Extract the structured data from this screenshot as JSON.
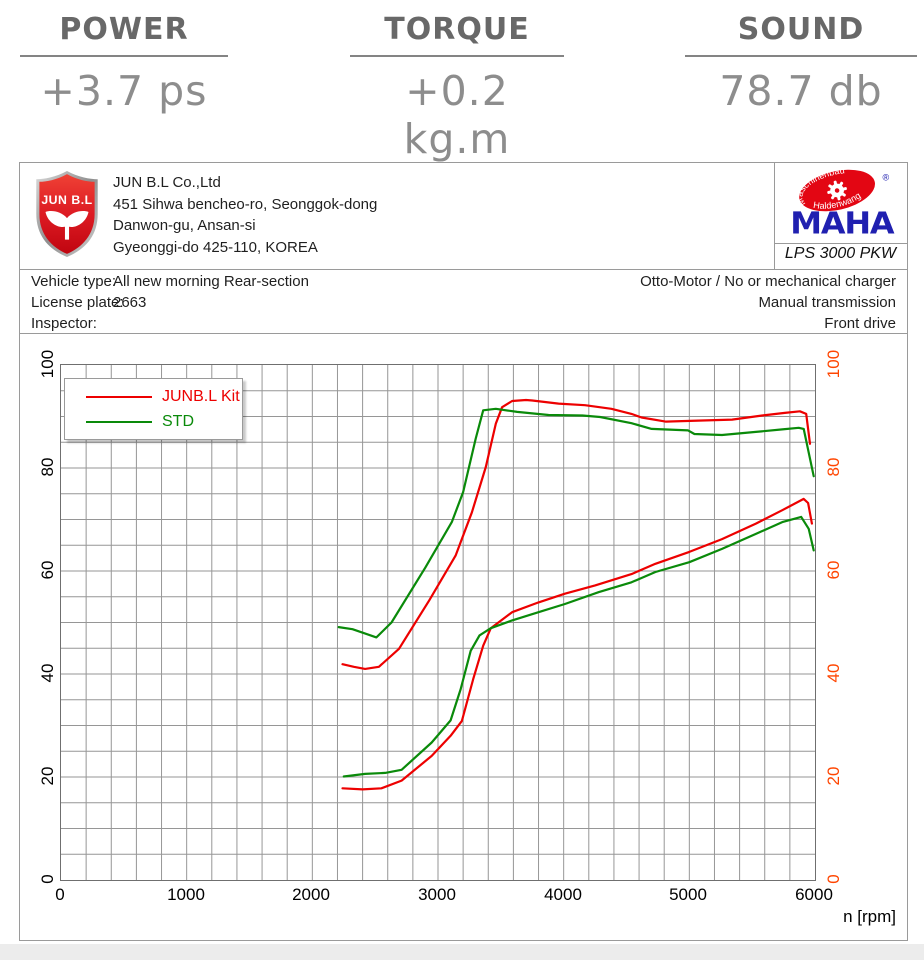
{
  "metrics": [
    {
      "label": "POWER",
      "value": "+3.7 ps"
    },
    {
      "label": "TORQUE",
      "value": "+0.2 kg.m"
    },
    {
      "label": "SOUND",
      "value": "78.7 db"
    }
  ],
  "company": {
    "logo_text": "JUN B.L",
    "name": "JUN B.L Co.,Ltd",
    "address_lines": [
      "451 Sihwa bencheo-ro, Seonggok-dong",
      "Danwon-gu, Ansan-si",
      "Gyeonggi-do 425-110, KOREA"
    ]
  },
  "device": {
    "brand": "MAHA",
    "brand_arc_top": "Maschinenbau",
    "brand_arc_bottom": "Haldenwang",
    "registered_mark": "®",
    "model": "LPS 3000 PKW"
  },
  "vehicle": {
    "rows": [
      {
        "label": "Vehicle type:",
        "value": "All new morning Rear-section"
      },
      {
        "label": "License plate:",
        "value": "2663"
      },
      {
        "label": "Inspector:",
        "value": ""
      }
    ],
    "right_lines": [
      "Otto-Motor / No or mechanical charger",
      "Manual transmission",
      "Front drive"
    ]
  },
  "colors": {
    "kit_red": "#ed0000",
    "std_green": "#0a8a0a",
    "right_axis_orange": "#ff4500",
    "grid_gray": "#969696"
  },
  "chart_data": {
    "type": "line",
    "title": "",
    "xlabel": "n [rpm]",
    "ylabel": "",
    "xlim": [
      0,
      6000
    ],
    "ylim": [
      0,
      100
    ],
    "x_ticks": [
      0,
      1000,
      2000,
      3000,
      4000,
      5000,
      6000
    ],
    "y_ticks": [
      0,
      20,
      40,
      60,
      80,
      100
    ],
    "x_minor_step": 200,
    "y_minor_step": 5,
    "grid": true,
    "legend_position": "top-left",
    "legend": [
      {
        "label": "JUNB.L Kit",
        "color": "#ed0000"
      },
      {
        "label": "STD",
        "color": "#0a8a0a"
      }
    ],
    "series": [
      {
        "name": "power-junbl-kit",
        "legend": "JUNB.L Kit",
        "color": "#ed0000",
        "points": [
          [
            2240,
            41.9
          ],
          [
            2330,
            41.4
          ],
          [
            2420,
            41.0
          ],
          [
            2530,
            41.4
          ],
          [
            2690,
            44.9
          ],
          [
            2930,
            54.3
          ],
          [
            3140,
            63.0
          ],
          [
            3270,
            71.4
          ],
          [
            3380,
            80.2
          ],
          [
            3460,
            88.6
          ],
          [
            3510,
            91.8
          ],
          [
            3590,
            93.0
          ],
          [
            3700,
            93.2
          ],
          [
            3750,
            93.1
          ],
          [
            3960,
            92.5
          ],
          [
            4170,
            92.2
          ],
          [
            4380,
            91.5
          ],
          [
            4540,
            90.5
          ],
          [
            4620,
            89.8
          ],
          [
            4810,
            89.0
          ],
          [
            5070,
            89.2
          ],
          [
            5340,
            89.4
          ],
          [
            5580,
            90.2
          ],
          [
            5760,
            90.7
          ],
          [
            5880,
            91.0
          ],
          [
            5930,
            90.5
          ],
          [
            5960,
            84.7
          ]
        ]
      },
      {
        "name": "power-std",
        "legend": "STD",
        "color": "#0a8a0a",
        "points": [
          [
            2210,
            49.1
          ],
          [
            2320,
            48.7
          ],
          [
            2510,
            47.1
          ],
          [
            2630,
            50.0
          ],
          [
            2900,
            60.7
          ],
          [
            3110,
            69.5
          ],
          [
            3200,
            75.3
          ],
          [
            3300,
            85.7
          ],
          [
            3360,
            91.2
          ],
          [
            3460,
            91.5
          ],
          [
            3630,
            90.9
          ],
          [
            3880,
            90.3
          ],
          [
            4150,
            90.2
          ],
          [
            4290,
            89.9
          ],
          [
            4540,
            88.7
          ],
          [
            4700,
            87.6
          ],
          [
            4990,
            87.3
          ],
          [
            5040,
            86.6
          ],
          [
            5260,
            86.4
          ],
          [
            5530,
            87.0
          ],
          [
            5740,
            87.5
          ],
          [
            5870,
            87.8
          ],
          [
            5910,
            87.6
          ],
          [
            5990,
            78.4
          ]
        ]
      },
      {
        "name": "torque-junbl-kit",
        "legend": "JUNB.L Kit",
        "color": "#ed0000",
        "points": [
          [
            2240,
            17.8
          ],
          [
            2400,
            17.6
          ],
          [
            2550,
            17.8
          ],
          [
            2710,
            19.3
          ],
          [
            2950,
            24.1
          ],
          [
            3100,
            28.0
          ],
          [
            3190,
            30.9
          ],
          [
            3280,
            39.0
          ],
          [
            3360,
            45.5
          ],
          [
            3420,
            48.9
          ],
          [
            3590,
            52.0
          ],
          [
            3800,
            53.9
          ],
          [
            4010,
            55.6
          ],
          [
            4250,
            57.2
          ],
          [
            4540,
            59.4
          ],
          [
            4730,
            61.4
          ],
          [
            5000,
            63.7
          ],
          [
            5260,
            66.2
          ],
          [
            5530,
            69.2
          ],
          [
            5740,
            71.8
          ],
          [
            5910,
            74.0
          ],
          [
            5945,
            73.2
          ],
          [
            5975,
            69.2
          ]
        ]
      },
      {
        "name": "torque-std",
        "legend": "STD",
        "color": "#0a8a0a",
        "points": [
          [
            2250,
            20.1
          ],
          [
            2420,
            20.6
          ],
          [
            2580,
            20.8
          ],
          [
            2710,
            21.4
          ],
          [
            2950,
            26.7
          ],
          [
            3100,
            31.0
          ],
          [
            3180,
            37.0
          ],
          [
            3260,
            44.5
          ],
          [
            3330,
            47.5
          ],
          [
            3420,
            48.9
          ],
          [
            3590,
            50.4
          ],
          [
            3800,
            52.0
          ],
          [
            4010,
            53.6
          ],
          [
            4280,
            55.9
          ],
          [
            4540,
            57.8
          ],
          [
            4730,
            59.8
          ],
          [
            5000,
            61.7
          ],
          [
            5260,
            64.3
          ],
          [
            5530,
            67.2
          ],
          [
            5740,
            69.5
          ],
          [
            5890,
            70.5
          ],
          [
            5950,
            68.2
          ],
          [
            5990,
            64.0
          ]
        ]
      }
    ]
  }
}
